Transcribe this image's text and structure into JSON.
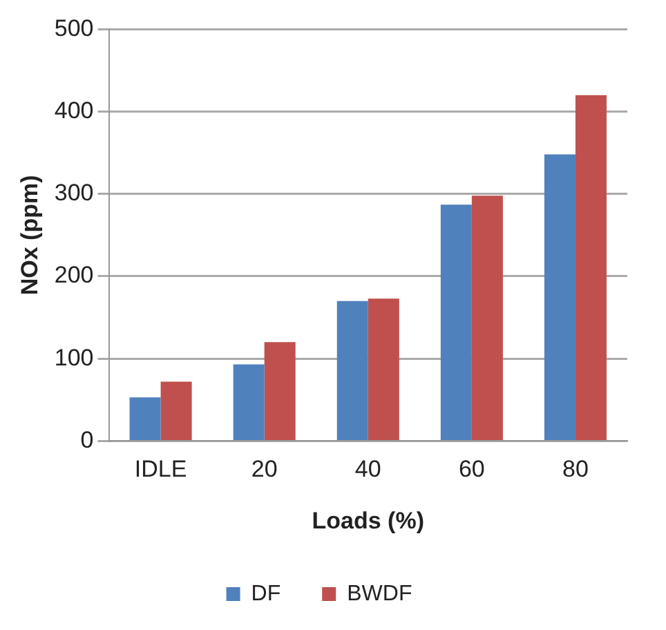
{
  "chart_data": {
    "type": "bar",
    "xlabel": "Loads (%)",
    "ylabel": "NOx (ppm)",
    "categories": [
      "IDLE",
      "20",
      "40",
      "60",
      "80"
    ],
    "series": [
      {
        "name": "DF",
        "color": "#4f81bd",
        "values": [
          53,
          93,
          170,
          287,
          348
        ]
      },
      {
        "name": "BWDF",
        "color": "#c0504d",
        "values": [
          72,
          120,
          173,
          298,
          420
        ]
      }
    ],
    "ylim": [
      0,
      500
    ],
    "yticks": [
      0,
      100,
      200,
      300,
      400,
      500
    ],
    "grid": "y",
    "legend": "bottom"
  }
}
